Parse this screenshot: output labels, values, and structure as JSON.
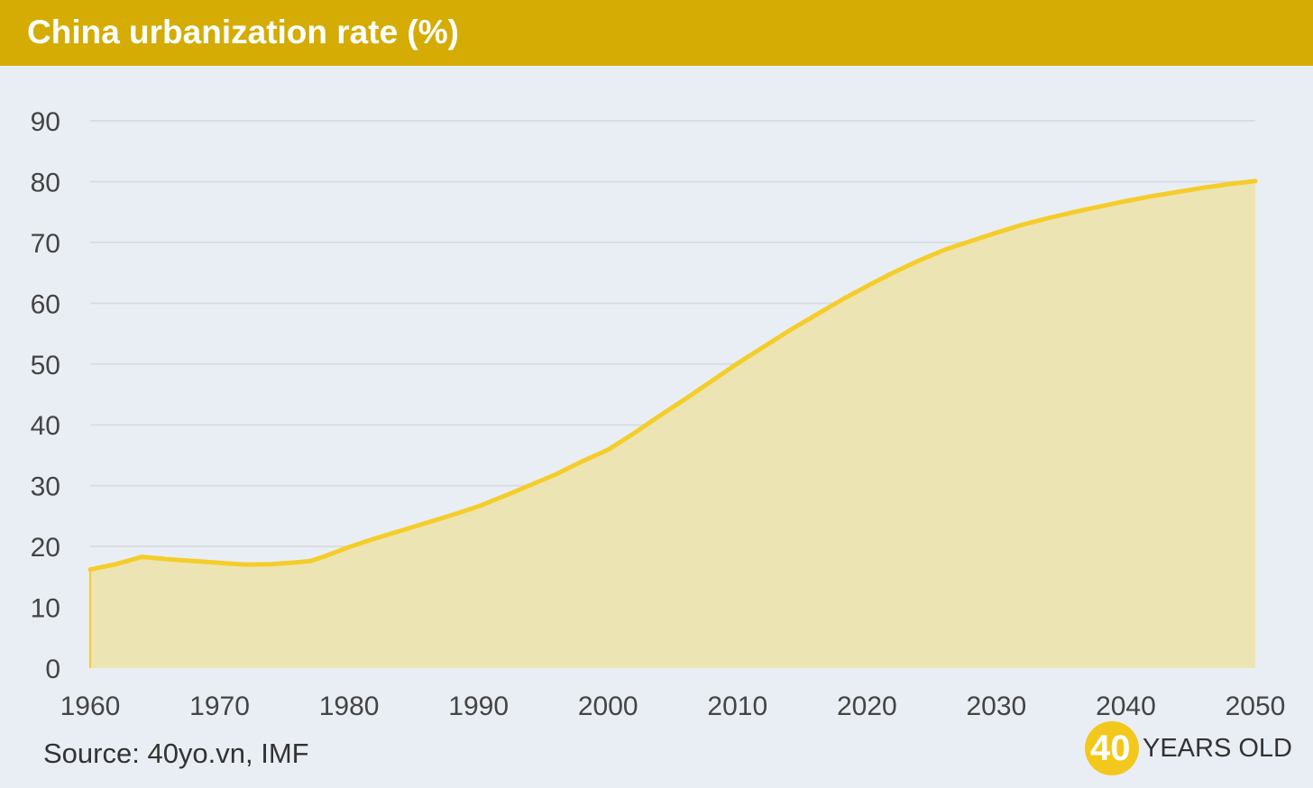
{
  "header": {
    "title": "China urbanization rate (%)"
  },
  "footer": {
    "source": "Source: 40yo.vn, IMF",
    "brand_number": "40",
    "brand_text": "YEARS OLD"
  },
  "colors": {
    "header_bg": "#d4ac04",
    "page_bg": "#e9eef5",
    "line": "#f5cd2a",
    "area": "#ede4b3",
    "grid": "#d8dde3",
    "tick_text": "#444444",
    "brand_circle": "#f2c81c"
  },
  "chart_data": {
    "type": "area",
    "title": "China urbanization rate (%)",
    "xlabel": "",
    "ylabel": "",
    "xlim": [
      1960,
      2050
    ],
    "ylim": [
      0,
      90
    ],
    "grid": true,
    "x_ticks": [
      1960,
      1970,
      1980,
      1990,
      2000,
      2010,
      2020,
      2030,
      2040,
      2050
    ],
    "y_ticks": [
      0,
      10,
      20,
      30,
      40,
      50,
      60,
      70,
      80,
      90
    ],
    "series": [
      {
        "name": "Urbanization rate",
        "x": [
          1960,
          1962,
          1964,
          1966,
          1968,
          1970,
          1972,
          1974,
          1976,
          1977,
          1978,
          1980,
          1982,
          1984,
          1986,
          1988,
          1990,
          1992,
          1994,
          1996,
          1998,
          2000,
          2002,
          2004,
          2006,
          2008,
          2010,
          2012,
          2014,
          2016,
          2018,
          2020,
          2022,
          2024,
          2026,
          2028,
          2030,
          2032,
          2034,
          2036,
          2038,
          2040,
          2042,
          2044,
          2046,
          2048,
          2050
        ],
        "values": [
          16.2,
          17.1,
          18.3,
          17.9,
          17.6,
          17.3,
          17.0,
          17.1,
          17.4,
          17.6,
          18.3,
          19.9,
          21.3,
          22.6,
          23.9,
          25.2,
          26.6,
          28.3,
          30.1,
          31.9,
          34.0,
          35.9,
          38.6,
          41.5,
          44.3,
          47.2,
          50.1,
          52.8,
          55.5,
          58.0,
          60.5,
          62.8,
          65.0,
          67.0,
          68.8,
          70.2,
          71.6,
          72.9,
          74.0,
          75.0,
          75.9,
          76.8,
          77.6,
          78.3,
          79.0,
          79.6,
          80.1
        ]
      }
    ]
  }
}
